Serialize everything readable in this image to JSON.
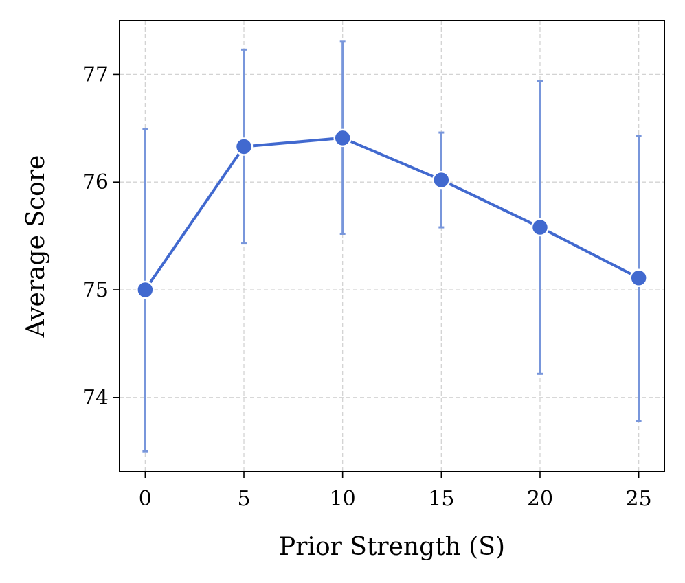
{
  "chart_data": {
    "type": "line",
    "title": "",
    "xlabel": "Prior Strength (S)",
    "ylabel": "Average Score",
    "xlim": [
      -1.3,
      26.3
    ],
    "ylim": [
      73.31,
      77.5
    ],
    "xticks": [
      0,
      5,
      10,
      15,
      20,
      25
    ],
    "yticks": [
      74,
      75,
      76,
      77
    ],
    "grid": true,
    "series": [
      {
        "x": [
          0,
          5,
          10,
          15,
          20,
          25
        ],
        "y": [
          75.0,
          76.33,
          76.41,
          76.02,
          75.58,
          75.11
        ],
        "error_lower": [
          73.5,
          75.43,
          75.52,
          75.58,
          74.22,
          73.78
        ],
        "error_upper": [
          76.49,
          77.23,
          77.31,
          76.46,
          76.94,
          76.43
        ]
      }
    ],
    "colors": {
      "line": "#4169cf",
      "errorbar": "#7896db",
      "marker_edge": "#ffffff"
    }
  }
}
